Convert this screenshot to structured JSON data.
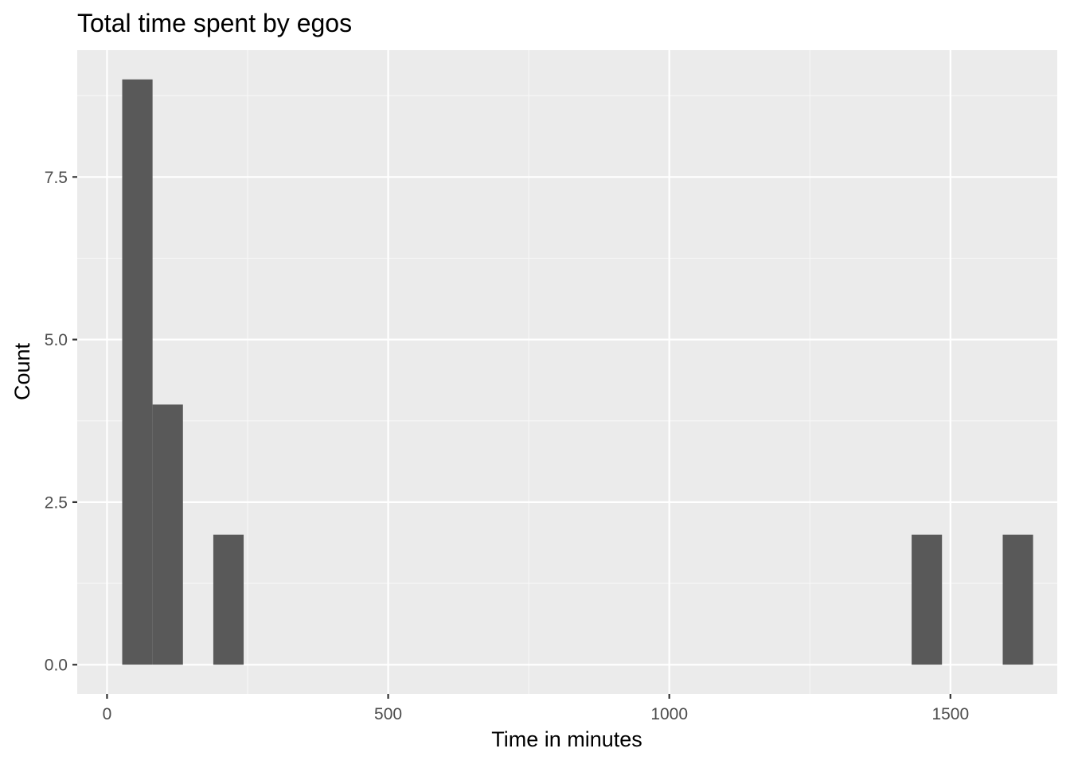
{
  "chart_data": {
    "type": "bar",
    "subtype": "histogram",
    "title": "Total time spent by egos",
    "xlabel": "Time in minutes",
    "ylabel": "Count",
    "xlim": [
      -53,
      1690
    ],
    "ylim": [
      -0.45,
      9.45
    ],
    "x_ticks": [
      0,
      500,
      1000,
      1500
    ],
    "x_tick_labels": [
      "0",
      "500",
      "1000",
      "1500"
    ],
    "x_minor_ticks": [
      250,
      750,
      1250
    ],
    "y_ticks": [
      0,
      2.5,
      5,
      7.5
    ],
    "y_tick_labels": [
      "0.0",
      "2.5",
      "5.0",
      "7.5"
    ],
    "y_minor_ticks": [
      1.25,
      3.75,
      6.25,
      8.75
    ],
    "grid": true,
    "bin_width": 54,
    "bins": [
      {
        "x_start": 27,
        "x_end": 81,
        "count": 9
      },
      {
        "x_start": 81,
        "x_end": 135,
        "count": 4
      },
      {
        "x_start": 189,
        "x_end": 243,
        "count": 2
      },
      {
        "x_start": 1431,
        "x_end": 1485,
        "count": 2
      },
      {
        "x_start": 1593,
        "x_end": 1647,
        "count": 2
      }
    ],
    "colors": {
      "panel_background": "#ebebeb",
      "grid_major": "#ffffff",
      "grid_minor": "#f7f7f7",
      "bar_fill": "#595959",
      "tick_label": "#4d4d4d",
      "axis_tick": "#333333"
    }
  }
}
